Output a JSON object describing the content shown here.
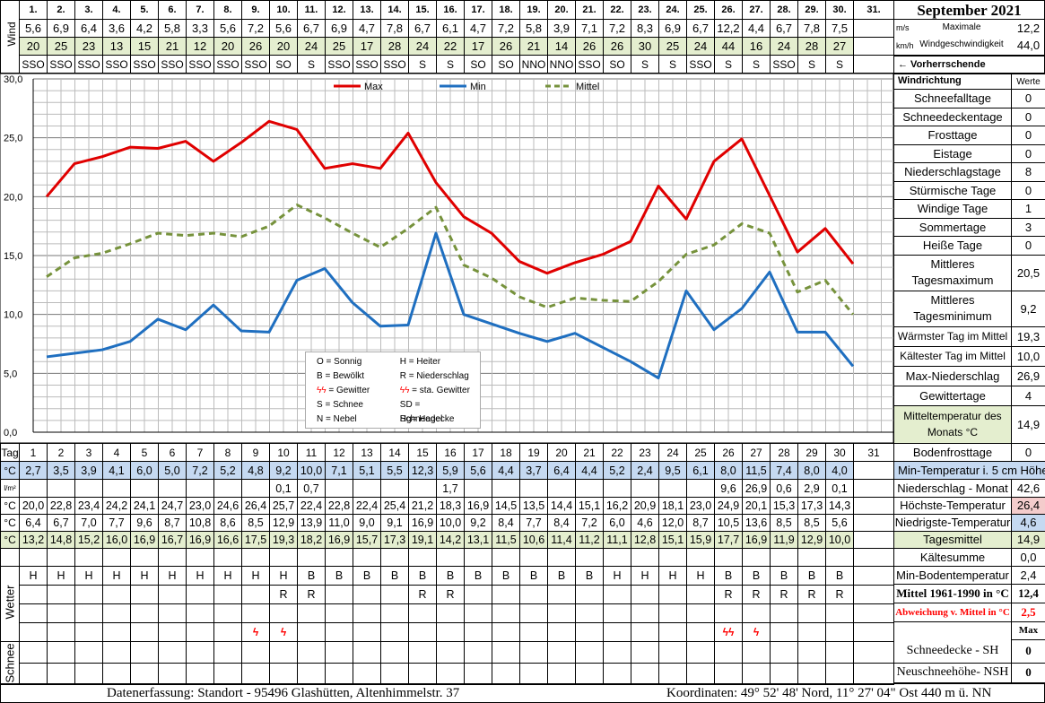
{
  "title": "September 2021",
  "days": [
    "1.",
    "2.",
    "3.",
    "4.",
    "5.",
    "6.",
    "7.",
    "8.",
    "9.",
    "10.",
    "11.",
    "12.",
    "13.",
    "14.",
    "15.",
    "16.",
    "17.",
    "18.",
    "19.",
    "20.",
    "21.",
    "22.",
    "23.",
    "24.",
    "25.",
    "26.",
    "27.",
    "28.",
    "29.",
    "30.",
    "31."
  ],
  "days_short": [
    "1",
    "2",
    "3",
    "4",
    "5",
    "6",
    "7",
    "8",
    "9",
    "10",
    "11",
    "12",
    "13",
    "14",
    "15",
    "16",
    "17",
    "18",
    "19",
    "20",
    "21",
    "22",
    "23",
    "24",
    "25",
    "26",
    "27",
    "28",
    "29",
    "30",
    "31"
  ],
  "wind": {
    "side_label": "Wind",
    "ms": [
      "5,6",
      "6,9",
      "6,4",
      "3,6",
      "4,2",
      "5,8",
      "3,3",
      "5,6",
      "7,2",
      "5,6",
      "6,7",
      "6,9",
      "4,7",
      "7,8",
      "6,7",
      "6,1",
      "4,7",
      "7,2",
      "5,8",
      "3,9",
      "7,1",
      "7,2",
      "8,3",
      "6,9",
      "6,7",
      "12,2",
      "4,4",
      "6,7",
      "7,8",
      "7,5",
      ""
    ],
    "kmh": [
      "20",
      "25",
      "23",
      "13",
      "15",
      "21",
      "12",
      "20",
      "26",
      "20",
      "24",
      "25",
      "17",
      "28",
      "24",
      "22",
      "17",
      "26",
      "21",
      "14",
      "26",
      "26",
      "30",
      "25",
      "24",
      "44",
      "16",
      "24",
      "28",
      "27",
      ""
    ],
    "dir": [
      "SSO",
      "SSO",
      "SSO",
      "SSO",
      "SSO",
      "SSO",
      "SSO",
      "SSO",
      "SSO",
      "SO",
      "S",
      "SSO",
      "SSO",
      "SSO",
      "S",
      "S",
      "SO",
      "SO",
      "NNO",
      "NNO",
      "SSO",
      "SO",
      "S",
      "S",
      "SSO",
      "S",
      "S",
      "SSO",
      "S",
      "S",
      ""
    ],
    "unit_ms": "m/s",
    "unit_kmh": "km/h",
    "max_label_1": "Maximale",
    "max_label_2": "Windgeschwindigkeit",
    "max_ms": "12,2",
    "max_kmh": "44,0",
    "dir_note": "← Vorherrschende Windrichtung"
  },
  "legend": {
    "max": "Max",
    "min": "Min",
    "mittel": "Mittel"
  },
  "key": [
    [
      "O = Sonnig",
      "H = Heiter"
    ],
    [
      "B = Bewölkt",
      "R = Niederschlag"
    ],
    [
      "ϟϟ = Gewitter",
      "ϟϟ = sta. Gewitter"
    ],
    [
      "S = Schnee",
      "SD = Schneedecke"
    ],
    [
      "N = Nebel",
      "Hg= Hagel"
    ]
  ],
  "chart_data": {
    "type": "line",
    "x": [
      1,
      2,
      3,
      4,
      5,
      6,
      7,
      8,
      9,
      10,
      11,
      12,
      13,
      14,
      15,
      16,
      17,
      18,
      19,
      20,
      21,
      22,
      23,
      24,
      25,
      26,
      27,
      28,
      29,
      30
    ],
    "ylim": [
      0,
      30
    ],
    "yticks": [
      "0,0",
      "5,0",
      "10,0",
      "15,0",
      "20,0",
      "25,0",
      "30,0"
    ],
    "series": [
      {
        "name": "Max",
        "color": "#e00000",
        "dash": false,
        "values": [
          20.0,
          22.8,
          23.4,
          24.2,
          24.1,
          24.7,
          23.0,
          24.6,
          26.4,
          25.7,
          22.4,
          22.8,
          22.4,
          25.4,
          21.2,
          18.3,
          16.9,
          14.5,
          13.5,
          14.4,
          15.1,
          16.2,
          20.9,
          18.1,
          23.0,
          24.9,
          20.1,
          15.3,
          17.3,
          14.3
        ]
      },
      {
        "name": "Min",
        "color": "#1f6fc0",
        "dash": false,
        "values": [
          6.4,
          6.7,
          7.0,
          7.7,
          9.6,
          8.7,
          10.8,
          8.6,
          8.5,
          12.9,
          13.9,
          11.0,
          9.0,
          9.1,
          16.9,
          10.0,
          9.2,
          8.4,
          7.7,
          8.4,
          7.2,
          6.0,
          4.6,
          12.0,
          8.7,
          10.5,
          13.6,
          8.5,
          8.5,
          5.6
        ]
      },
      {
        "name": "Mittel",
        "color": "#76923c",
        "dash": true,
        "values": [
          13.2,
          14.8,
          15.2,
          16.0,
          16.9,
          16.7,
          16.9,
          16.6,
          17.5,
          19.3,
          18.2,
          16.9,
          15.7,
          17.3,
          19.1,
          14.2,
          13.1,
          11.5,
          10.6,
          11.4,
          11.2,
          11.1,
          12.8,
          15.1,
          15.9,
          17.7,
          16.9,
          11.9,
          12.9,
          10.0
        ]
      }
    ],
    "grid": true,
    "legend_position": "top"
  },
  "rows": {
    "tag": "Tag",
    "boden_label": "°C",
    "boden": [
      "2,7",
      "3,5",
      "3,9",
      "4,1",
      "6,0",
      "5,0",
      "7,2",
      "5,2",
      "4,8",
      "9,2",
      "10,0",
      "7,1",
      "5,1",
      "5,5",
      "12,3",
      "5,9",
      "5,6",
      "4,4",
      "3,7",
      "6,4",
      "4,4",
      "5,2",
      "2,4",
      "9,5",
      "6,1",
      "8,0",
      "11,5",
      "7,4",
      "8,0",
      "4,0",
      ""
    ],
    "nied_label": "l/m²",
    "nied": [
      "",
      "",
      "",
      "",
      "",
      "",
      "",
      "",
      "",
      "0,1",
      "0,7",
      "",
      "",
      "",
      "",
      "1,7",
      "",
      "",
      "",
      "",
      "",
      "",
      "",
      "",
      "",
      "9,6",
      "26,9",
      "0,6",
      "2,9",
      "0,1",
      ""
    ],
    "max_label": "°C",
    "max": [
      "20,0",
      "22,8",
      "23,4",
      "24,2",
      "24,1",
      "24,7",
      "23,0",
      "24,6",
      "26,4",
      "25,7",
      "22,4",
      "22,8",
      "22,4",
      "25,4",
      "21,2",
      "18,3",
      "16,9",
      "14,5",
      "13,5",
      "14,4",
      "15,1",
      "16,2",
      "20,9",
      "18,1",
      "23,0",
      "24,9",
      "20,1",
      "15,3",
      "17,3",
      "14,3",
      ""
    ],
    "min_label": "°C",
    "min": [
      "6,4",
      "6,7",
      "7,0",
      "7,7",
      "9,6",
      "8,7",
      "10,8",
      "8,6",
      "8,5",
      "12,9",
      "13,9",
      "11,0",
      "9,0",
      "9,1",
      "16,9",
      "10,0",
      "9,2",
      "8,4",
      "7,7",
      "8,4",
      "7,2",
      "6,0",
      "4,6",
      "12,0",
      "8,7",
      "10,5",
      "13,6",
      "8,5",
      "8,5",
      "5,6",
      ""
    ],
    "mit_label": "°C",
    "mit": [
      "13,2",
      "14,8",
      "15,2",
      "16,0",
      "16,9",
      "16,7",
      "16,9",
      "16,6",
      "17,5",
      "19,3",
      "18,2",
      "16,9",
      "15,7",
      "17,3",
      "19,1",
      "14,2",
      "13,1",
      "11,5",
      "10,6",
      "11,4",
      "11,2",
      "11,1",
      "12,8",
      "15,1",
      "15,9",
      "17,7",
      "16,9",
      "11,9",
      "12,9",
      "10,0",
      ""
    ]
  },
  "weather": {
    "side_label": "Wetter",
    "w1": [
      "H",
      "H",
      "H",
      "H",
      "H",
      "H",
      "H",
      "H",
      "H",
      "H",
      "B",
      "B",
      "B",
      "B",
      "B",
      "B",
      "B",
      "B",
      "B",
      "B",
      "B",
      "H",
      "H",
      "H",
      "H",
      "B",
      "B",
      "B",
      "B",
      "B",
      ""
    ],
    "w2": [
      "",
      "",
      "",
      "",
      "",
      "",
      "",
      "",
      "",
      "R",
      "R",
      "",
      "",
      "",
      "R",
      "R",
      "",
      "",
      "",
      "",
      "",
      "",
      "",
      "",
      "",
      "R",
      "R",
      "R",
      "R",
      "R",
      ""
    ],
    "storm": [
      "",
      "",
      "",
      "",
      "",
      "",
      "",
      "",
      "ϟ",
      "ϟ",
      "",
      "",
      "",
      "",
      "",
      "",
      "",
      "",
      "",
      "",
      "",
      "",
      "",
      "",
      "",
      "ϟϟ",
      "ϟ",
      "",
      "",
      "",
      ""
    ]
  },
  "snow": {
    "side_label": "Schnee"
  },
  "right": {
    "werte_label": "Werte",
    "stats": [
      {
        "label": "Schneefalltage",
        "value": "0"
      },
      {
        "label": "Schneedeckentage",
        "value": "0"
      },
      {
        "label": "Frosttage",
        "value": "0"
      },
      {
        "label": "Eistage",
        "value": "0"
      },
      {
        "label": "Niederschlagstage",
        "value": "8"
      },
      {
        "label": "Stürmische Tage",
        "value": "0"
      },
      {
        "label": "Windige Tage",
        "value": "1"
      },
      {
        "label": "Sommertage",
        "value": "3"
      },
      {
        "label": "Heiße Tage",
        "value": "0"
      }
    ],
    "mittl_max_1": "Mittleres",
    "mittl_max_2": "Tagesmaximum",
    "mittl_max_value": "20,5",
    "mittl_min_1": "Mittleres",
    "mittl_min_2": "Tagesminimum",
    "mittl_min_value": "9,2",
    "stats2": [
      {
        "label": "Wärmster Tag im Mittel",
        "value": "19,3"
      },
      {
        "label": "Kältester Tag im Mittel",
        "value": "10,0"
      },
      {
        "label": "Max-Niederschlag",
        "value": "26,9"
      },
      {
        "label": "Gewittertage",
        "value": "4"
      }
    ],
    "monat_1": "Mitteltemperatur des",
    "monat_2": "Monats °C",
    "monat_value": "14,9",
    "bodenfrost_label": "Bodenfrosttage",
    "bodenfrost_value": "0",
    "lower": [
      {
        "label": "Min-Temperatur i. 5 cm Höhe",
        "value": ""
      },
      {
        "label": "Niederschlag - Monat",
        "value": "42,6"
      },
      {
        "label": "Höchste-Temperatur",
        "value": "26,4"
      },
      {
        "label": "Niedrigste-Temperatur",
        "value": "4,6"
      },
      {
        "label": "Tagesmittel",
        "value": "14,9"
      },
      {
        "label": "Kältesumme",
        "value": "0,0"
      },
      {
        "label": "Min-Bodentemperatur",
        "value": "2,4"
      },
      {
        "label": "Mittel 1961-1990 in °C",
        "value": "12,4"
      },
      {
        "label": "Abweichung v. Mittel in °C",
        "value": "2,5"
      }
    ],
    "max_hdr": "Max",
    "sh_label": "Schneedecke -  SH",
    "sh_value": "0",
    "nsh_label": "Neuschneehöhe- NSH",
    "nsh_value": "0"
  },
  "footer": {
    "left": "Datenerfassung:  Standort -  95496  Glashütten, Altenhimmelstr. 37",
    "right": "Koordinaten:  49° 52' 48' Nord,  11° 27' 04\" Ost  440 m ü. NN"
  }
}
